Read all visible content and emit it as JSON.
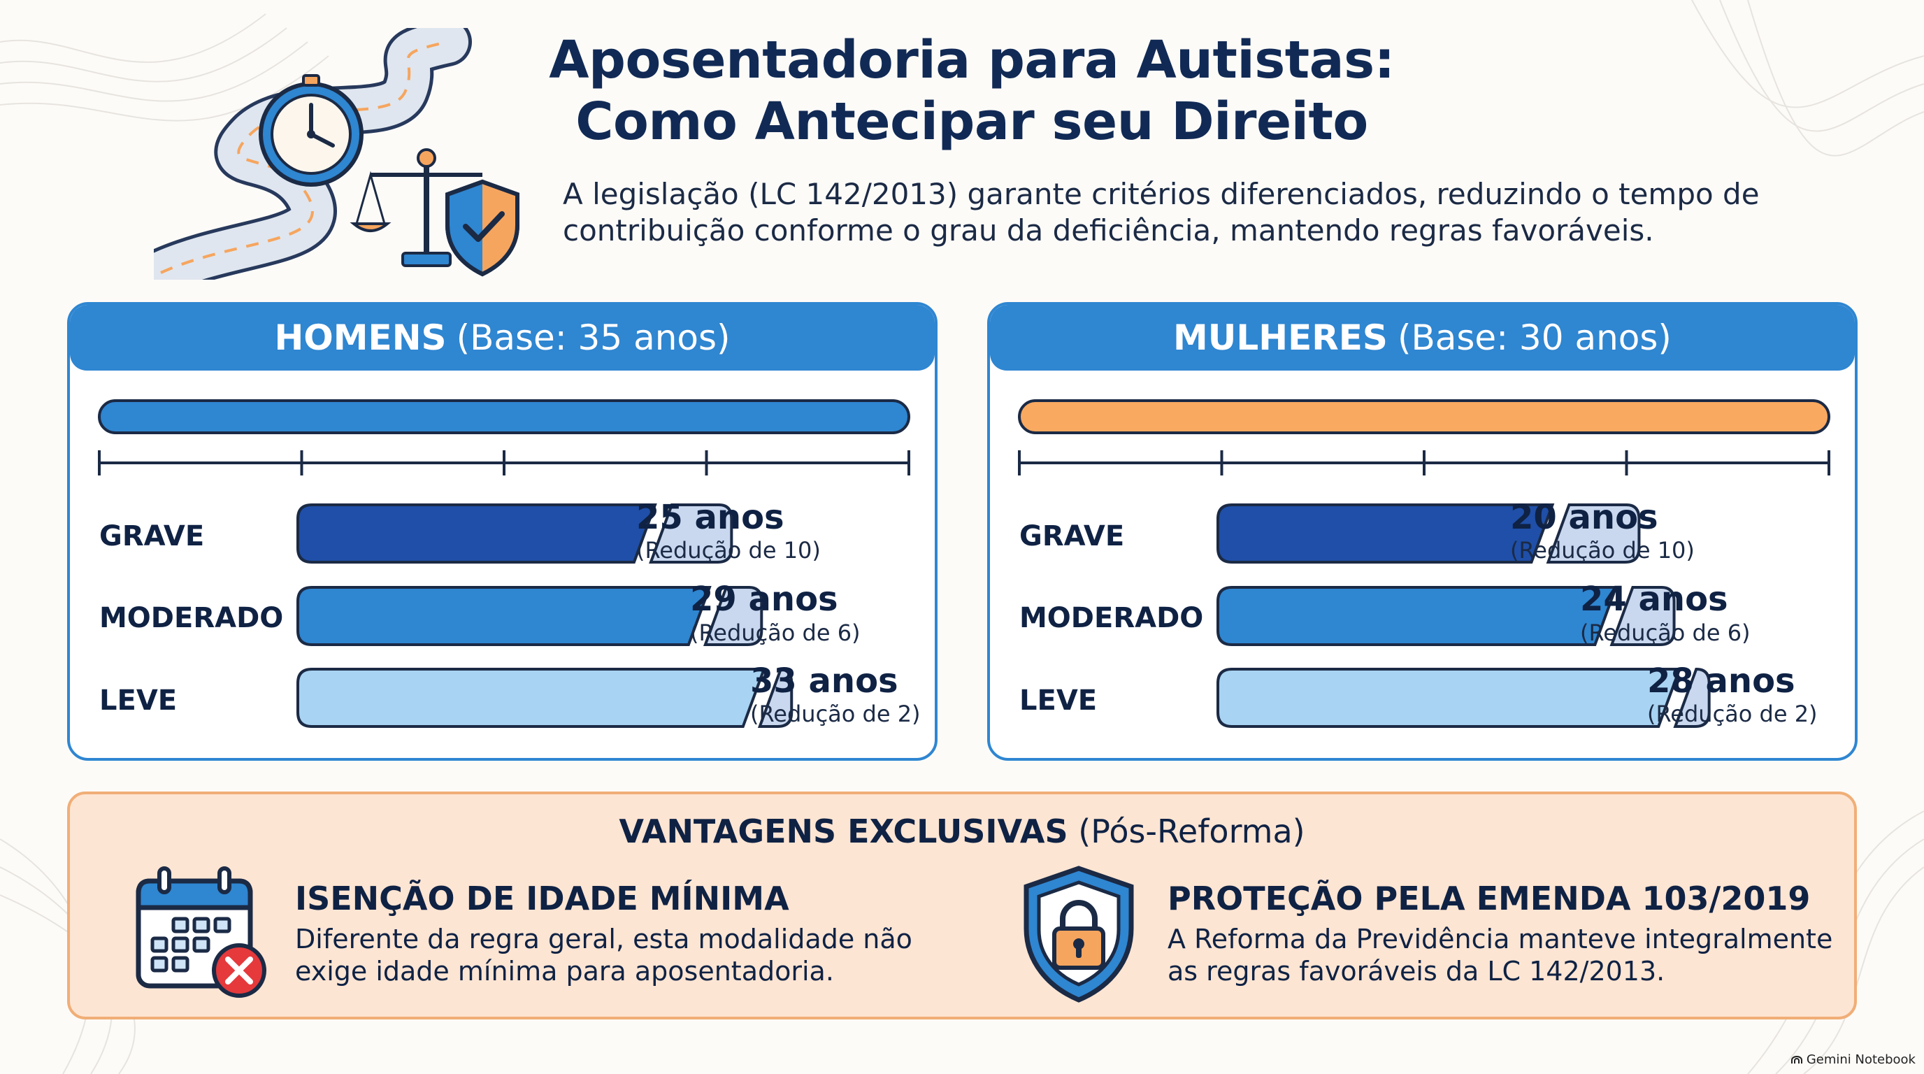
{
  "header": {
    "title_line1": "Aposentadoria para Autistas:",
    "title_line2": "Como Antecipar seu Direito",
    "subtitle_line1": "A legislação (LC 142/2013) garante critérios diferenciados, reduzindo o tempo de",
    "subtitle_line2": "contribuição conforme o grau da deficiência, mantendo regras favoráveis."
  },
  "panels": {
    "men": {
      "title": "HOMENS",
      "base": "(Base: 35 anos)",
      "color": "#2f86d1",
      "base_years": 35,
      "rows": [
        {
          "label": "GRAVE",
          "years": 25,
          "reduction": 10,
          "value": "25 anos",
          "note": "(Redução de 10)"
        },
        {
          "label": "MODERADO",
          "years": 29,
          "reduction": 6,
          "value": "29 anos",
          "note": "(Redução de 6)"
        },
        {
          "label": "LEVE",
          "years": 33,
          "reduction": 2,
          "value": "33 anos",
          "note": "(Redução de 2)"
        }
      ]
    },
    "women": {
      "title": "MULHERES",
      "base": "(Base: 30 anos)",
      "color": "#f9a960",
      "base_years": 30,
      "rows": [
        {
          "label": "GRAVE",
          "years": 20,
          "reduction": 10,
          "value": "20 anos",
          "note": "(Redução de 10)"
        },
        {
          "label": "MODERADO",
          "years": 24,
          "reduction": 6,
          "value": "24 anos",
          "note": "(Redução de 6)"
        },
        {
          "label": "LEVE",
          "years": 28,
          "reduction": 2,
          "value": "28 anos",
          "note": "(Redução de 2)"
        }
      ]
    }
  },
  "severity_colors": [
    "#1f4fa8",
    "#2f86d1",
    "#a8d3f2"
  ],
  "advantages": {
    "title": "VANTAGENS EXCLUSIVAS",
    "title_suffix": "(Pós-Reforma)",
    "items": [
      {
        "icon": "calendar-x-icon",
        "title": "ISENÇÃO DE IDADE MÍNIMA",
        "line1": "Diferente da regra geral, esta modalidade não",
        "line2": "exige idade mínima para aposentadoria."
      },
      {
        "icon": "shield-lock-icon",
        "title": "PROTEÇÃO PELA EMENDA 103/2019",
        "line1": "A Reforma da Previdência manteve integralmente",
        "line2": "as regras favoráveis da LC 142/2013."
      }
    ]
  },
  "watermark": "Gemini Notebook"
}
